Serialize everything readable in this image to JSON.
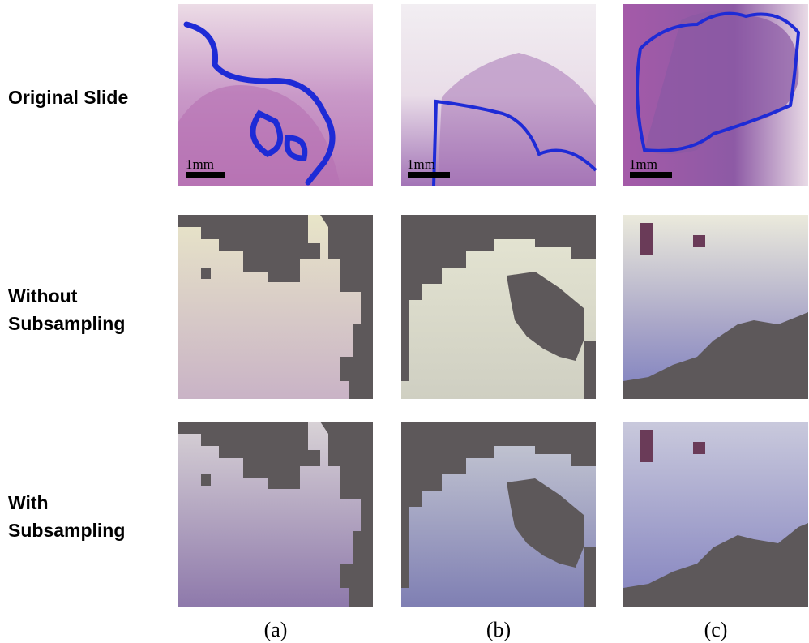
{
  "row_labels": [
    {
      "lines": [
        "Original Slide"
      ]
    },
    {
      "lines": [
        "Without",
        "Subsampling"
      ]
    },
    {
      "lines": [
        "With",
        "Subsampling"
      ]
    }
  ],
  "column_labels": [
    "(a)",
    "(b)",
    "(c)"
  ],
  "scale_bars": [
    "1mm",
    "1mm",
    "1mm"
  ]
}
